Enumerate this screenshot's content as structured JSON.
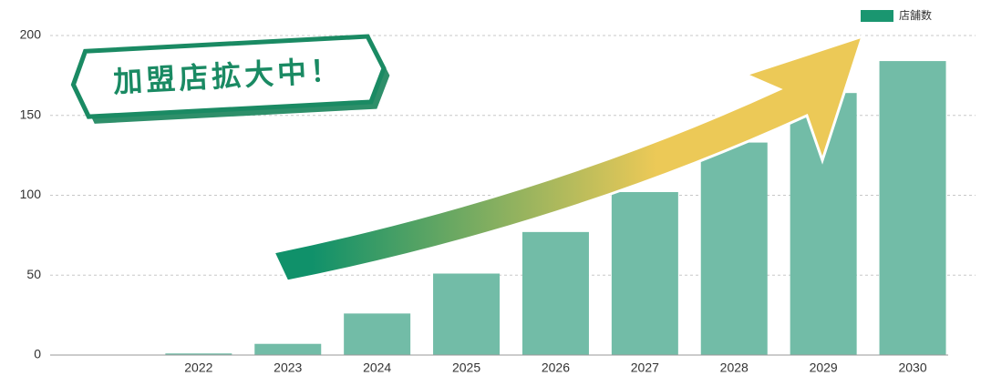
{
  "chart_data": {
    "type": "bar",
    "annotation": "加盟店拡大中！",
    "categories": [
      null,
      "2022",
      "2023",
      "2024",
      "2025",
      "2026",
      "2027",
      "2028",
      "2029",
      "2030"
    ],
    "series": [
      {
        "name": "店舗数",
        "color": "#72bca7",
        "values": [
          null,
          1,
          7,
          26,
          51,
          77,
          102,
          133,
          164,
          184
        ]
      }
    ],
    "legend_color": "#1a9670",
    "ylim": [
      0,
      200
    ],
    "yticks": [
      0,
      50,
      100,
      150,
      200
    ],
    "grid": true,
    "legend": "top-right"
  }
}
